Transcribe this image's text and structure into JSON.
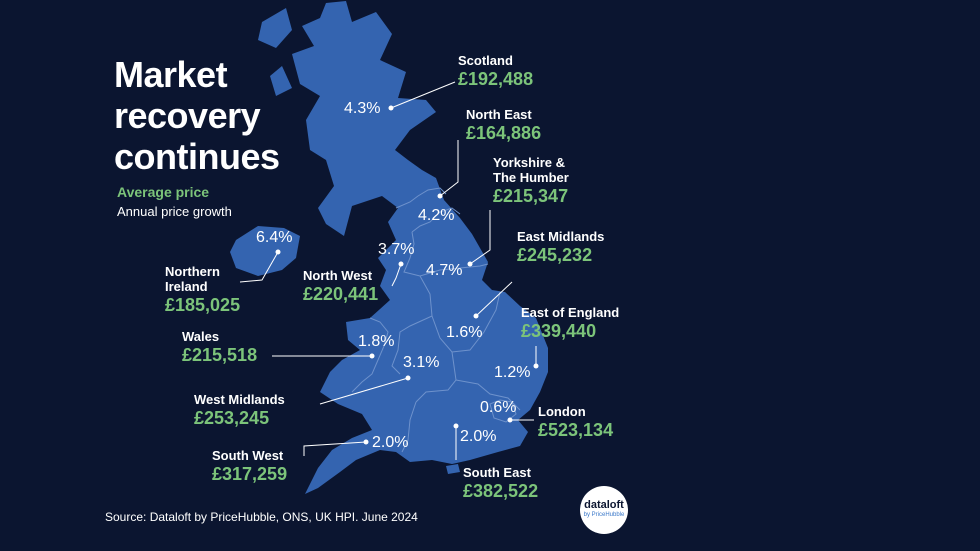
{
  "title_lines": [
    "Market",
    "recovery",
    "continues"
  ],
  "legend": {
    "average_price": "Average price",
    "annual_growth": "Annual price growth"
  },
  "regions": [
    {
      "key": "scotland",
      "name": "Scotland",
      "price": "£192,488",
      "growth": "4.3%"
    },
    {
      "key": "north-east",
      "name": "North East",
      "price": "£164,886",
      "growth": "4.2%"
    },
    {
      "key": "yorkshire",
      "name": "Yorkshire &\nThe Humber",
      "price": "£215,347",
      "growth": "4.7%"
    },
    {
      "key": "east-midlands",
      "name": "East Midlands",
      "price": "£245,232",
      "growth": "1.6%"
    },
    {
      "key": "east-of-england",
      "name": "East of England",
      "price": "£339,440",
      "growth": "1.2%"
    },
    {
      "key": "london",
      "name": "London",
      "price": "£523,134",
      "growth": "0.6%"
    },
    {
      "key": "south-east",
      "name": "South East",
      "price": "£382,522",
      "growth": "2.0%"
    },
    {
      "key": "south-west",
      "name": "South West",
      "price": "£317,259",
      "growth": "2.0%"
    },
    {
      "key": "west-midlands",
      "name": "West Midlands",
      "price": "£253,245",
      "growth": "3.1%"
    },
    {
      "key": "wales",
      "name": "Wales",
      "price": "£215,518",
      "growth": "1.8%"
    },
    {
      "key": "north-west",
      "name": "North West",
      "price": "£220,441",
      "growth": "3.7%"
    },
    {
      "key": "northern-ireland",
      "name": "Northern\nIreland",
      "price": "£185,025",
      "growth": "6.4%"
    }
  ],
  "source": "Source: Dataloft by PriceHubble, ONS, UK HPI. June 2024",
  "logo": {
    "name": "dataloft",
    "sub": "by PriceHubble"
  },
  "colors": {
    "background": "#0b1530",
    "land": "#3464b0",
    "border": "#6e92cc",
    "price": "#7cc47a",
    "text": "#ffffff"
  }
}
